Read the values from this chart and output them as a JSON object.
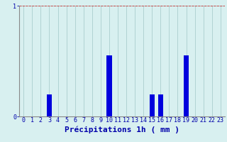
{
  "categories": [
    0,
    1,
    2,
    3,
    4,
    5,
    6,
    7,
    8,
    9,
    10,
    11,
    12,
    13,
    14,
    15,
    16,
    17,
    18,
    19,
    20,
    21,
    22,
    23
  ],
  "values": [
    0,
    0,
    0,
    0.2,
    0,
    0,
    0,
    0,
    0,
    0,
    0.55,
    0,
    0,
    0,
    0,
    0.2,
    0.2,
    0,
    0,
    0.55,
    0,
    0,
    0,
    0
  ],
  "bar_color": "#0000dd",
  "background_color": "#d8f0f0",
  "grid_color": "#aacece",
  "axis_color": "#0000aa",
  "spine_color": "#888888",
  "xlabel": "Précipitations 1h ( mm )",
  "ylim": [
    0,
    1.0
  ],
  "yticks": [
    0,
    1
  ],
  "xlim": [
    -0.5,
    23.5
  ],
  "xlabel_fontsize": 8,
  "tick_fontsize": 6,
  "title": ""
}
